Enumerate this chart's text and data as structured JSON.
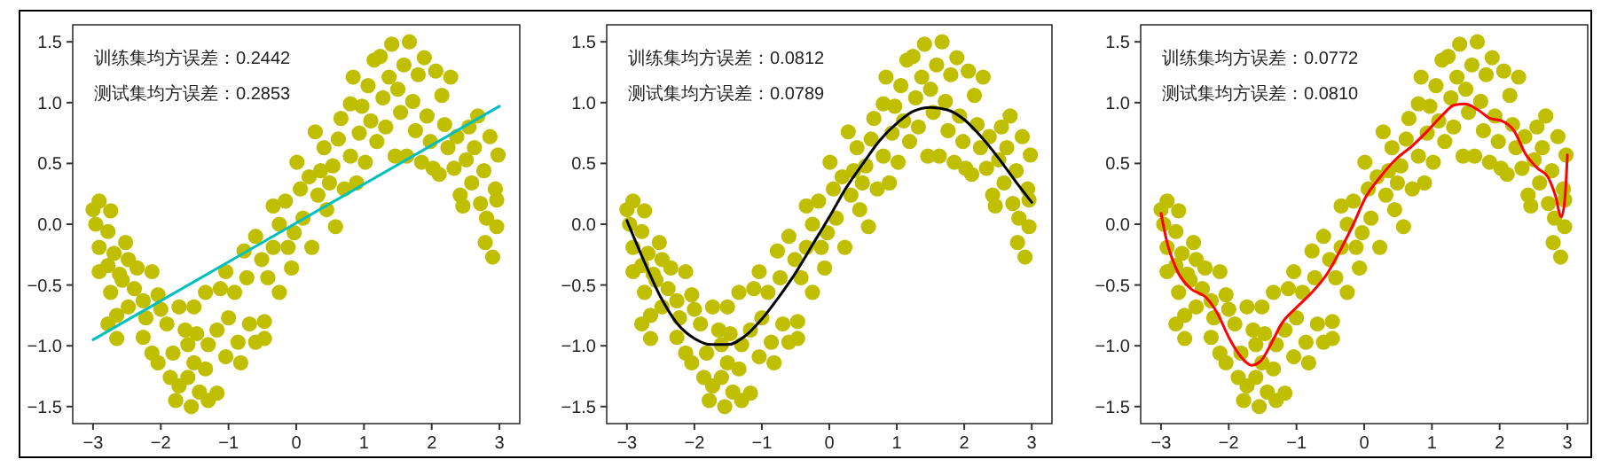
{
  "chart_data": [
    {
      "type": "scatter",
      "marker": "circle",
      "annotations": [
        "训练集均方误差：0.2442",
        "测试集均方误差：0.2853"
      ],
      "xlim": [
        -3.3,
        3.3
      ],
      "ylim": [
        -1.64,
        1.64
      ],
      "xticks": [
        {
          "value": -3,
          "label": "−3"
        },
        {
          "value": -2,
          "label": "−2"
        },
        {
          "value": -1,
          "label": "−1"
        },
        0,
        1,
        2,
        3
      ],
      "yticks": [
        {
          "value": -1.5,
          "label": "−1.5"
        },
        {
          "value": -1,
          "label": "−1.0"
        },
        {
          "value": -0.5,
          "label": "−0.5"
        },
        {
          "value": 0,
          "label": "0.0"
        },
        {
          "value": 0.5,
          "label": "0.5"
        },
        {
          "value": 1,
          "label": "1.0"
        },
        {
          "value": 1.5,
          "label": "1.5"
        }
      ],
      "series": [
        {
          "type": "scatter",
          "color": "#bfbf00",
          "x": [
            -3.0,
            -2.91,
            -2.96,
            -2.74,
            -2.78,
            -2.91,
            -2.69,
            -2.91,
            -2.52,
            -2.78,
            -2.61,
            -2.48,
            -2.74,
            -2.57,
            -2.35,
            -2.39,
            -2.65,
            -2.78,
            -2.65,
            -2.48,
            -2.26,
            -2.13,
            -2.22,
            -2.26,
            -2.13,
            -2.04,
            -2.0,
            -1.91,
            -2.04,
            -1.82,
            -1.86,
            -1.78,
            -1.73,
            -1.64,
            -1.6,
            -1.73,
            -1.55,
            -1.51,
            -1.47,
            -1.51,
            -1.6,
            -1.43,
            -1.34,
            -1.3,
            -1.34,
            -1.3,
            -1.17,
            -1.12,
            -1.17,
            -1.04,
            -1.0,
            -1.04,
            -0.91,
            -0.86,
            -0.82,
            -0.77,
            -0.73,
            -0.69,
            -0.6,
            -0.6,
            -0.51,
            -0.47,
            -0.42,
            -0.47,
            -0.34,
            -0.34,
            -0.25,
            -0.25,
            -0.16,
            -0.12,
            -0.07,
            -0.03,
            0.01,
            0.06,
            0.1,
            0.19,
            0.23,
            0.28,
            0.32,
            0.36,
            0.41,
            0.45,
            0.49,
            0.54,
            0.58,
            0.62,
            0.66,
            0.71,
            0.8,
            0.8,
            0.84,
            0.89,
            0.93,
            0.97,
            1.02,
            1.06,
            1.1,
            1.15,
            1.19,
            1.24,
            1.28,
            1.32,
            1.37,
            1.41,
            1.46,
            1.5,
            1.54,
            1.59,
            1.63,
            1.67,
            1.72,
            1.76,
            1.8,
            1.85,
            1.89,
            1.93,
            1.98,
            2.02,
            2.06,
            2.11,
            2.15,
            2.19,
            2.24,
            2.28,
            2.33,
            2.37,
            2.42,
            2.46,
            2.51,
            2.55,
            2.59,
            2.63,
            2.68,
            2.72,
            2.77,
            2.79,
            2.81,
            2.86,
            2.9,
            2.94,
            2.96,
            2.98,
            2.96
          ],
          "values": [
            0.12,
            0.19,
            0.0,
            0.11,
            -0.06,
            -0.19,
            -0.24,
            -0.39,
            -0.15,
            -0.34,
            -0.41,
            -0.29,
            -0.56,
            -0.46,
            -0.36,
            -0.53,
            -0.75,
            -0.82,
            -0.94,
            -0.68,
            -0.63,
            -0.39,
            -0.77,
            -0.93,
            -1.06,
            -0.58,
            -0.7,
            -0.82,
            -1.14,
            -1.06,
            -1.26,
            -1.45,
            -0.68,
            -0.87,
            -0.99,
            -1.33,
            -1.5,
            -0.68,
            -0.9,
            -1.14,
            -1.26,
            -1.38,
            -0.56,
            -0.99,
            -1.19,
            -1.45,
            -0.87,
            -0.53,
            -1.39,
            -0.39,
            -0.77,
            -1.09,
            -0.56,
            -0.97,
            -1.14,
            -0.22,
            -0.44,
            -0.82,
            -0.1,
            -0.97,
            -0.29,
            -0.8,
            -0.44,
            -0.94,
            0.15,
            -0.19,
            -0.56,
            0.0,
            0.19,
            -0.19,
            -0.36,
            -0.07,
            0.51,
            0.29,
            0.05,
            0.39,
            -0.19,
            0.76,
            0.24,
            0.44,
            0.63,
            0.12,
            0.34,
            0.48,
            -0.02,
            0.7,
            0.87,
            0.29,
            0.99,
            0.56,
            1.21,
            0.34,
            0.75,
            0.97,
            0.51,
            1.14,
            0.85,
            1.35,
            0.68,
            1.38,
            1.04,
            0.8,
            1.21,
            1.48,
            0.56,
            1.11,
            0.92,
            1.31,
            0.56,
            1.5,
            1.01,
            0.77,
            1.23,
            0.51,
            1.37,
            0.89,
            0.68,
            0.46,
            1.26,
            0.41,
            1.06,
            0.82,
            0.63,
            1.21,
            0.46,
            0.72,
            0.24,
            0.15,
            0.53,
            0.8,
            0.34,
            0.63,
            0.89,
            0.17,
            0.44,
            -0.15,
            0.05,
            0.72,
            -0.27,
            0.29,
            -0.02,
            0.57,
            0.2
          ]
        },
        {
          "type": "line",
          "marker": "none",
          "color": "#00bfbf",
          "x": [
            -3,
            3
          ],
          "values": [
            -0.95,
            0.97
          ]
        }
      ]
    },
    {
      "type": "scatter",
      "marker": "circle",
      "annotations": [
        "训练集均方误差：0.0812",
        "测试集均方误差：0.0789"
      ],
      "xlim": [
        -3.3,
        3.3
      ],
      "ylim": [
        -1.64,
        1.64
      ],
      "xticks": [
        {
          "value": -3,
          "label": "−3"
        },
        {
          "value": -2,
          "label": "−2"
        },
        {
          "value": -1,
          "label": "−1"
        },
        0,
        1,
        2,
        3
      ],
      "yticks": [
        {
          "value": -1.5,
          "label": "−1.5"
        },
        {
          "value": -1,
          "label": "−1.0"
        },
        {
          "value": -0.5,
          "label": "−0.5"
        },
        {
          "value": 0,
          "label": "0.0"
        },
        {
          "value": 0.5,
          "label": "0.5"
        },
        {
          "value": 1,
          "label": "1.0"
        },
        {
          "value": 1.5,
          "label": "1.5"
        }
      ],
      "series": [
        {
          "type": "scatter",
          "color": "#bfbf00",
          "x": [
            -3.0,
            -2.91,
            -2.96,
            -2.74,
            -2.78,
            -2.91,
            -2.69,
            -2.91,
            -2.52,
            -2.78,
            -2.61,
            -2.48,
            -2.74,
            -2.57,
            -2.35,
            -2.39,
            -2.65,
            -2.78,
            -2.65,
            -2.48,
            -2.26,
            -2.13,
            -2.22,
            -2.26,
            -2.13,
            -2.04,
            -2.0,
            -1.91,
            -2.04,
            -1.82,
            -1.86,
            -1.78,
            -1.73,
            -1.64,
            -1.6,
            -1.73,
            -1.55,
            -1.51,
            -1.47,
            -1.51,
            -1.6,
            -1.43,
            -1.34,
            -1.3,
            -1.34,
            -1.3,
            -1.17,
            -1.12,
            -1.17,
            -1.04,
            -1.0,
            -1.04,
            -0.91,
            -0.86,
            -0.82,
            -0.77,
            -0.73,
            -0.69,
            -0.6,
            -0.6,
            -0.51,
            -0.47,
            -0.42,
            -0.47,
            -0.34,
            -0.34,
            -0.25,
            -0.25,
            -0.16,
            -0.12,
            -0.07,
            -0.03,
            0.01,
            0.06,
            0.1,
            0.19,
            0.23,
            0.28,
            0.32,
            0.36,
            0.41,
            0.45,
            0.49,
            0.54,
            0.58,
            0.62,
            0.66,
            0.71,
            0.8,
            0.8,
            0.84,
            0.89,
            0.93,
            0.97,
            1.02,
            1.06,
            1.1,
            1.15,
            1.19,
            1.24,
            1.28,
            1.32,
            1.37,
            1.41,
            1.46,
            1.5,
            1.54,
            1.59,
            1.63,
            1.67,
            1.72,
            1.76,
            1.8,
            1.85,
            1.89,
            1.93,
            1.98,
            2.02,
            2.06,
            2.11,
            2.15,
            2.19,
            2.24,
            2.28,
            2.33,
            2.37,
            2.42,
            2.46,
            2.51,
            2.55,
            2.59,
            2.63,
            2.68,
            2.72,
            2.77,
            2.79,
            2.81,
            2.86,
            2.9,
            2.94,
            2.96,
            2.98,
            2.96
          ],
          "values": [
            0.12,
            0.19,
            0.0,
            0.11,
            -0.06,
            -0.19,
            -0.24,
            -0.39,
            -0.15,
            -0.34,
            -0.41,
            -0.29,
            -0.56,
            -0.46,
            -0.36,
            -0.53,
            -0.75,
            -0.82,
            -0.94,
            -0.68,
            -0.63,
            -0.39,
            -0.77,
            -0.93,
            -1.06,
            -0.58,
            -0.7,
            -0.82,
            -1.14,
            -1.06,
            -1.26,
            -1.45,
            -0.68,
            -0.87,
            -0.99,
            -1.33,
            -1.5,
            -0.68,
            -0.9,
            -1.14,
            -1.26,
            -1.38,
            -0.56,
            -0.99,
            -1.19,
            -1.45,
            -0.87,
            -0.53,
            -1.39,
            -0.39,
            -0.77,
            -1.09,
            -0.56,
            -0.97,
            -1.14,
            -0.22,
            -0.44,
            -0.82,
            -0.1,
            -0.97,
            -0.29,
            -0.8,
            -0.44,
            -0.94,
            0.15,
            -0.19,
            -0.56,
            0.0,
            0.19,
            -0.19,
            -0.36,
            -0.07,
            0.51,
            0.29,
            0.05,
            0.39,
            -0.19,
            0.76,
            0.24,
            0.44,
            0.63,
            0.12,
            0.34,
            0.48,
            -0.02,
            0.7,
            0.87,
            0.29,
            0.99,
            0.56,
            1.21,
            0.34,
            0.75,
            0.97,
            0.51,
            1.14,
            0.85,
            1.35,
            0.68,
            1.38,
            1.04,
            0.8,
            1.21,
            1.48,
            0.56,
            1.11,
            0.92,
            1.31,
            0.56,
            1.5,
            1.01,
            0.77,
            1.23,
            0.51,
            1.37,
            0.89,
            0.68,
            0.46,
            1.26,
            0.41,
            1.06,
            0.82,
            0.63,
            1.21,
            0.46,
            0.72,
            0.24,
            0.15,
            0.53,
            0.8,
            0.34,
            0.63,
            0.89,
            0.17,
            0.44,
            -0.15,
            0.05,
            0.72,
            -0.27,
            0.29,
            -0.02,
            0.57,
            0.2
          ]
        },
        {
          "type": "line",
          "marker": "none",
          "color": "#000000",
          "x": [
            -3,
            -2.75,
            -2.5,
            -2.25,
            -2,
            -1.75,
            -1.5,
            -1.25,
            -1,
            -0.75,
            -0.5,
            -0.25,
            0,
            0.25,
            0.5,
            0.75,
            1,
            1.25,
            1.5,
            1.75,
            2,
            2.25,
            2.5,
            2.75,
            3
          ],
          "values": [
            0.03,
            -0.3,
            -0.6,
            -0.82,
            -0.94,
            -0.99,
            -0.99,
            -0.92,
            -0.78,
            -0.6,
            -0.4,
            -0.17,
            0.06,
            0.3,
            0.5,
            0.69,
            0.83,
            0.93,
            0.96,
            0.94,
            0.86,
            0.72,
            0.55,
            0.36,
            0.18
          ]
        }
      ]
    },
    {
      "type": "scatter",
      "marker": "circle",
      "annotations": [
        "训练集均方误差：0.0772",
        "测试集均方误差：0.0810"
      ],
      "xlim": [
        -3.3,
        3.3
      ],
      "ylim": [
        -1.64,
        1.64
      ],
      "xticks": [
        {
          "value": -3,
          "label": "−3"
        },
        {
          "value": -2,
          "label": "−2"
        },
        {
          "value": -1,
          "label": "−1"
        },
        0,
        1,
        2,
        3
      ],
      "yticks": [
        {
          "value": -1.5,
          "label": "−1.5"
        },
        {
          "value": -1,
          "label": "−1.0"
        },
        {
          "value": -0.5,
          "label": "−0.5"
        },
        {
          "value": 0,
          "label": "0.0"
        },
        {
          "value": 0.5,
          "label": "0.5"
        },
        {
          "value": 1,
          "label": "1.0"
        },
        {
          "value": 1.5,
          "label": "1.5"
        }
      ],
      "series": [
        {
          "type": "scatter",
          "color": "#bfbf00",
          "x": [
            -3.0,
            -2.91,
            -2.96,
            -2.74,
            -2.78,
            -2.91,
            -2.69,
            -2.91,
            -2.52,
            -2.78,
            -2.61,
            -2.48,
            -2.74,
            -2.57,
            -2.35,
            -2.39,
            -2.65,
            -2.78,
            -2.65,
            -2.48,
            -2.26,
            -2.13,
            -2.22,
            -2.26,
            -2.13,
            -2.04,
            -2.0,
            -1.91,
            -2.04,
            -1.82,
            -1.86,
            -1.78,
            -1.73,
            -1.64,
            -1.6,
            -1.73,
            -1.55,
            -1.51,
            -1.47,
            -1.51,
            -1.6,
            -1.43,
            -1.34,
            -1.3,
            -1.34,
            -1.3,
            -1.17,
            -1.12,
            -1.17,
            -1.04,
            -1.0,
            -1.04,
            -0.91,
            -0.86,
            -0.82,
            -0.77,
            -0.73,
            -0.69,
            -0.6,
            -0.6,
            -0.51,
            -0.47,
            -0.42,
            -0.47,
            -0.34,
            -0.34,
            -0.25,
            -0.25,
            -0.16,
            -0.12,
            -0.07,
            -0.03,
            0.01,
            0.06,
            0.1,
            0.19,
            0.23,
            0.28,
            0.32,
            0.36,
            0.41,
            0.45,
            0.49,
            0.54,
            0.58,
            0.62,
            0.66,
            0.71,
            0.8,
            0.8,
            0.84,
            0.89,
            0.93,
            0.97,
            1.02,
            1.06,
            1.1,
            1.15,
            1.19,
            1.24,
            1.28,
            1.32,
            1.37,
            1.41,
            1.46,
            1.5,
            1.54,
            1.59,
            1.63,
            1.67,
            1.72,
            1.76,
            1.8,
            1.85,
            1.89,
            1.93,
            1.98,
            2.02,
            2.06,
            2.11,
            2.15,
            2.19,
            2.24,
            2.28,
            2.33,
            2.37,
            2.42,
            2.46,
            2.51,
            2.55,
            2.59,
            2.63,
            2.68,
            2.72,
            2.77,
            2.79,
            2.81,
            2.86,
            2.9,
            2.94,
            2.96,
            2.98,
            2.96
          ],
          "values": [
            0.12,
            0.19,
            0.0,
            0.11,
            -0.06,
            -0.19,
            -0.24,
            -0.39,
            -0.15,
            -0.34,
            -0.41,
            -0.29,
            -0.56,
            -0.46,
            -0.36,
            -0.53,
            -0.75,
            -0.82,
            -0.94,
            -0.68,
            -0.63,
            -0.39,
            -0.77,
            -0.93,
            -1.06,
            -0.58,
            -0.7,
            -0.82,
            -1.14,
            -1.06,
            -1.26,
            -1.45,
            -0.68,
            -0.87,
            -0.99,
            -1.33,
            -1.5,
            -0.68,
            -0.9,
            -1.14,
            -1.26,
            -1.38,
            -0.56,
            -0.99,
            -1.19,
            -1.45,
            -0.87,
            -0.53,
            -1.39,
            -0.39,
            -0.77,
            -1.09,
            -0.56,
            -0.97,
            -1.14,
            -0.22,
            -0.44,
            -0.82,
            -0.1,
            -0.97,
            -0.29,
            -0.8,
            -0.44,
            -0.94,
            0.15,
            -0.19,
            -0.56,
            0.0,
            0.19,
            -0.19,
            -0.36,
            -0.07,
            0.51,
            0.29,
            0.05,
            0.39,
            -0.19,
            0.76,
            0.24,
            0.44,
            0.63,
            0.12,
            0.34,
            0.48,
            -0.02,
            0.7,
            0.87,
            0.29,
            0.99,
            0.56,
            1.21,
            0.34,
            0.75,
            0.97,
            0.51,
            1.14,
            0.85,
            1.35,
            0.68,
            1.38,
            1.04,
            0.8,
            1.21,
            1.48,
            0.56,
            1.11,
            0.92,
            1.31,
            0.56,
            1.5,
            1.01,
            0.77,
            1.23,
            0.51,
            1.37,
            0.89,
            0.68,
            0.46,
            1.26,
            0.41,
            1.06,
            0.82,
            0.63,
            1.21,
            0.46,
            0.72,
            0.24,
            0.15,
            0.53,
            0.8,
            0.34,
            0.63,
            0.89,
            0.17,
            0.44,
            -0.15,
            0.05,
            0.72,
            -0.27,
            0.29,
            -0.02,
            0.57,
            0.2
          ]
        },
        {
          "type": "line",
          "marker": "none",
          "color": "#ff0000",
          "x": [
            -3,
            -2.91,
            -2.78,
            -2.56,
            -2.34,
            -2.17,
            -1.99,
            -1.82,
            -1.66,
            -1.52,
            -1.38,
            -1.21,
            -0.99,
            -0.77,
            -0.55,
            -0.33,
            -0.16,
            0.02,
            0.24,
            0.46,
            0.72,
            0.94,
            1.16,
            1.33,
            1.49,
            1.68,
            1.86,
            2.03,
            2.21,
            2.38,
            2.56,
            2.71,
            2.82,
            2.91,
            2.96,
            3.0
          ],
          "values": [
            0.09,
            -0.15,
            -0.36,
            -0.53,
            -0.6,
            -0.73,
            -0.94,
            -1.09,
            -1.16,
            -1.12,
            -0.99,
            -0.81,
            -0.68,
            -0.56,
            -0.41,
            -0.19,
            0.0,
            0.22,
            0.39,
            0.53,
            0.65,
            0.77,
            0.9,
            0.98,
            0.99,
            0.94,
            0.87,
            0.85,
            0.77,
            0.58,
            0.46,
            0.39,
            0.24,
            0.06,
            0.19,
            0.57
          ]
        }
      ]
    }
  ]
}
